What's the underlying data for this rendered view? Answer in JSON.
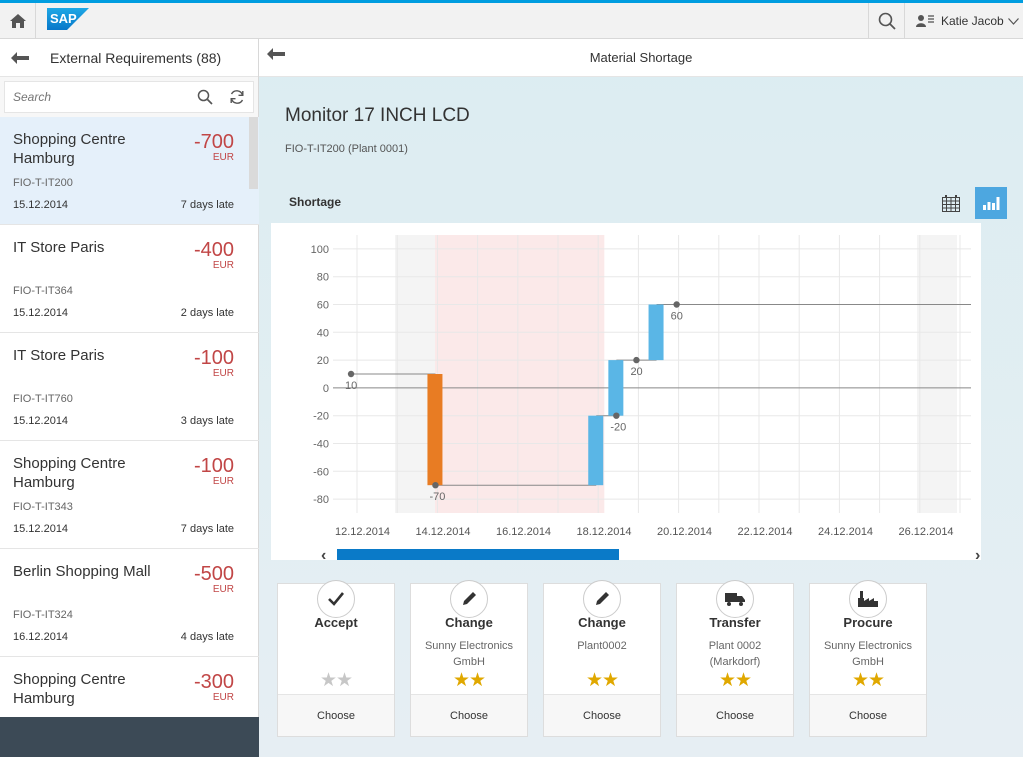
{
  "shell": {
    "user_name": "Katie Jacob",
    "logo_text": "SAP"
  },
  "master": {
    "title": "External Requirements (88)",
    "search_placeholder": "Search",
    "items": [
      {
        "title": "Shopping Centre Hamburg",
        "amount": "-700",
        "currency": "EUR",
        "id": "FIO-T-IT200",
        "date": "15.12.2014",
        "status": "7 days late",
        "selected": true
      },
      {
        "title": "IT Store Paris",
        "amount": "-400",
        "currency": "EUR",
        "id": "FIO-T-IT364",
        "date": "15.12.2014",
        "status": "2 days late"
      },
      {
        "title": "IT Store Paris",
        "amount": "-100",
        "currency": "EUR",
        "id": "FIO-T-IT760",
        "date": "15.12.2014",
        "status": "3 days late"
      },
      {
        "title": "Shopping Centre Hamburg",
        "amount": "-100",
        "currency": "EUR",
        "id": "FIO-T-IT343",
        "date": "15.12.2014",
        "status": "7 days late"
      },
      {
        "title": "Berlin Shopping Mall",
        "amount": "-500",
        "currency": "EUR",
        "id": "FIO-T-IT324",
        "date": "16.12.2014",
        "status": "4 days late"
      },
      {
        "title": "Shopping Centre Hamburg",
        "amount": "-300",
        "currency": "EUR",
        "id": "",
        "date": "",
        "status": ""
      }
    ]
  },
  "detail": {
    "header_title": "Material Shortage",
    "object_title": "Monitor 17 INCH LCD",
    "object_subtitle": "FIO-T-IT200 (Plant 0001)",
    "section_title": "Shortage"
  },
  "chart_data": {
    "type": "waterfall",
    "ylim": [
      -90,
      110
    ],
    "y_ticks": [
      100,
      80,
      60,
      40,
      20,
      0,
      -20,
      -40,
      -60,
      -80
    ],
    "x_tick_labels": [
      "12.12.2014",
      "14.12.2014",
      "16.12.2014",
      "18.12.2014",
      "20.12.2014",
      "22.12.2014",
      "24.12.2014",
      "26.12.2014"
    ],
    "shortage_period": [
      "15.12.2014",
      "24.12.2014"
    ],
    "steps": [
      {
        "date": "15.12.2014",
        "from": 10,
        "to": -70,
        "color": "#e87c23"
      },
      {
        "date": "23.12.2014",
        "from": -70,
        "to": -20,
        "color": "#5ab6e6"
      },
      {
        "date": "24.12.2014",
        "from": -20,
        "to": 20,
        "color": "#5ab6e6"
      },
      {
        "date": "26.12.2014",
        "from": 20,
        "to": 60,
        "color": "#5ab6e6"
      }
    ],
    "point_labels": [
      {
        "date": "11.12.2014",
        "value": 10,
        "label": "10"
      },
      {
        "date": "15.12.2014",
        "value": -70,
        "label": "-70"
      },
      {
        "date": "24.12.2014",
        "value": -20,
        "label": "-20"
      },
      {
        "date": "25.12.2014",
        "value": 20,
        "label": "20"
      },
      {
        "date": "27.12.2014",
        "value": 60,
        "label": "60"
      }
    ],
    "scroll_prev": "‹",
    "scroll_next": "›"
  },
  "solutions": [
    {
      "title": "Accept",
      "subtitle": "",
      "stars": "★★",
      "rated": false,
      "action": "Choose",
      "icon": "check-icon"
    },
    {
      "title": "Change",
      "subtitle": "Sunny Electronics GmbH",
      "stars": "★★",
      "rated": true,
      "action": "Choose",
      "icon": "pencil-icon"
    },
    {
      "title": "Change",
      "subtitle": "Plant0002",
      "stars": "★★",
      "rated": true,
      "action": "Choose",
      "icon": "pencil-icon"
    },
    {
      "title": "Transfer",
      "subtitle": "Plant 0002 (Markdorf)",
      "stars": "★★",
      "rated": true,
      "action": "Choose",
      "icon": "truck-icon"
    },
    {
      "title": "Procure",
      "subtitle": "Sunny Electronics GmbH",
      "stars": "★★",
      "rated": true,
      "action": "Choose",
      "icon": "factory-icon"
    }
  ]
}
